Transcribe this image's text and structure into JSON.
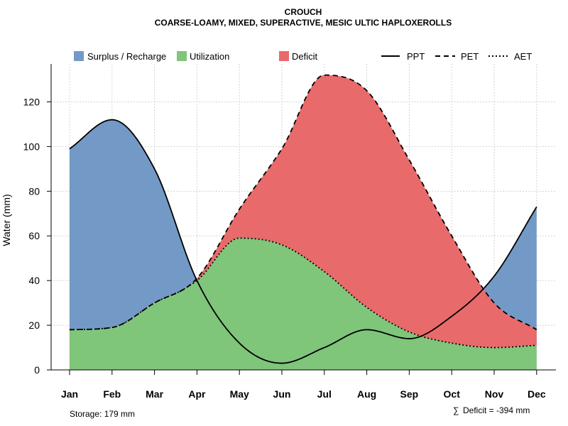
{
  "chart_data": {
    "type": "area",
    "title": "CROUCH",
    "subtitle": "COARSE-LOAMY, MIXED, SUPERACTIVE, MESIC ULTIC HAPLOXEROLLS",
    "xlabel": "",
    "ylabel": "Water (mm)",
    "categories": [
      "Jan",
      "Feb",
      "Mar",
      "Apr",
      "May",
      "Jun",
      "Jul",
      "Aug",
      "Sep",
      "Oct",
      "Nov",
      "Dec"
    ],
    "ylim": [
      0,
      137
    ],
    "yticks": [
      0,
      20,
      40,
      60,
      80,
      100,
      120
    ],
    "grid": true,
    "series": [
      {
        "name": "PPT",
        "style": "solid",
        "values": [
          99,
          112,
          90,
          40,
          12,
          3,
          10,
          18,
          14,
          24,
          42,
          73
        ]
      },
      {
        "name": "PET",
        "style": "dashed",
        "values": [
          18,
          19,
          30,
          41,
          72,
          99,
          132,
          125,
          94,
          60,
          30,
          18
        ]
      },
      {
        "name": "AET",
        "style": "dotted",
        "values": [
          18,
          19,
          30,
          40,
          59,
          56,
          44,
          28,
          17,
          12,
          10,
          11
        ]
      }
    ],
    "areas": [
      {
        "name": "Surplus / Recharge",
        "color": "#7399C6"
      },
      {
        "name": "Utilization",
        "color": "#7FC57A"
      },
      {
        "name": "Deficit",
        "color": "#E86A6B"
      }
    ],
    "legend": {
      "areas": [
        "Surplus / Recharge",
        "Utilization",
        "Deficit"
      ],
      "lines": [
        "PPT",
        "PET",
        "AET"
      ],
      "placement": "top"
    },
    "annotations": {
      "storage": "Storage: 179 mm",
      "deficit_symbol": "∑",
      "deficit": "Deficit = -394 mm"
    }
  }
}
